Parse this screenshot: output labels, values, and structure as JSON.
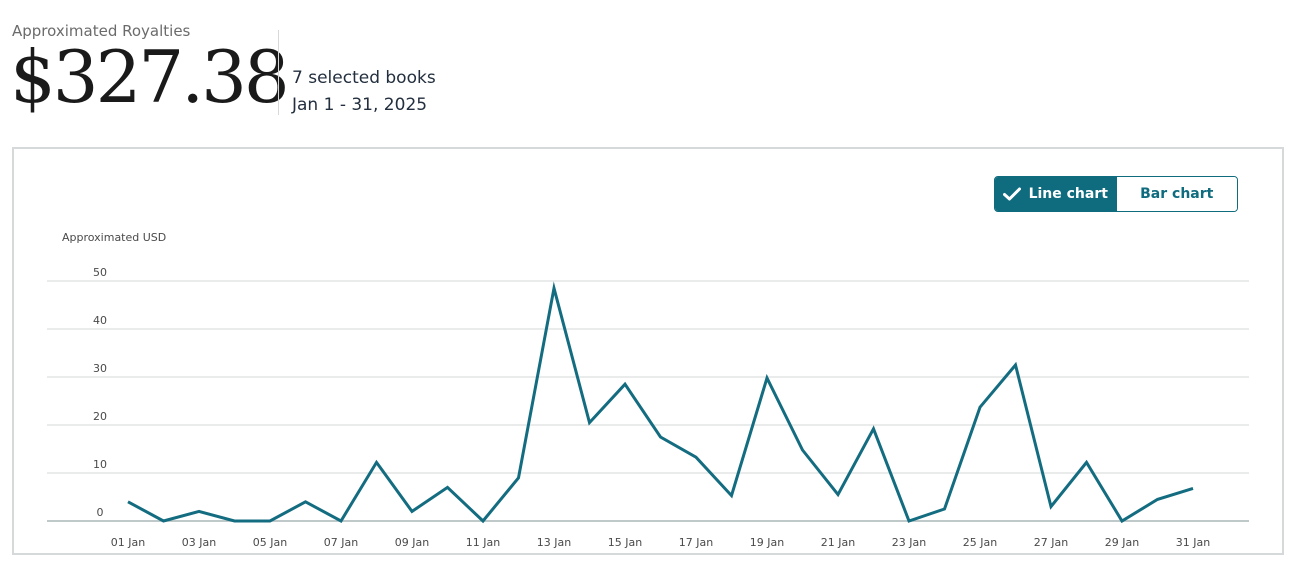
{
  "summary": {
    "label": "Approximated Royalties",
    "amount": "$327.38",
    "books": "7 selected books",
    "date_range": "Jan 1 - 31, 2025"
  },
  "toggle": {
    "line_label": "Line chart",
    "bar_label": "Bar chart",
    "active": "line"
  },
  "colors": {
    "line": "#136c80",
    "accent": "#0f6b7e",
    "grid": "#d5d9d9"
  },
  "chart_data": {
    "type": "line",
    "ylabel": "Approximated USD",
    "ylim": [
      0,
      50
    ],
    "yticks": [
      0,
      10,
      20,
      30,
      40,
      50
    ],
    "x_tick_labels": [
      "01 Jan",
      "03 Jan",
      "05 Jan",
      "07 Jan",
      "09 Jan",
      "11 Jan",
      "13 Jan",
      "15 Jan",
      "17 Jan",
      "19 Jan",
      "21 Jan",
      "23 Jan",
      "25 Jan",
      "27 Jan",
      "29 Jan",
      "31 Jan"
    ],
    "x": [
      "01 Jan",
      "02 Jan",
      "03 Jan",
      "04 Jan",
      "05 Jan",
      "06 Jan",
      "07 Jan",
      "08 Jan",
      "09 Jan",
      "10 Jan",
      "11 Jan",
      "12 Jan",
      "13 Jan",
      "14 Jan",
      "15 Jan",
      "16 Jan",
      "17 Jan",
      "18 Jan",
      "19 Jan",
      "20 Jan",
      "21 Jan",
      "22 Jan",
      "23 Jan",
      "24 Jan",
      "25 Jan",
      "26 Jan",
      "27 Jan",
      "28 Jan",
      "29 Jan",
      "30 Jan",
      "31 Jan"
    ],
    "values": [
      4.0,
      0.0,
      2.0,
      0.0,
      0.0,
      4.0,
      0.0,
      12.2,
      2.0,
      7.0,
      0.0,
      9.0,
      48.5,
      20.5,
      28.5,
      17.5,
      13.3,
      5.3,
      29.8,
      14.8,
      5.5,
      19.2,
      0.0,
      2.5,
      23.7,
      32.5,
      3.0,
      12.2,
      0.0,
      4.5,
      6.8
    ],
    "grid": true,
    "legend": "none"
  }
}
